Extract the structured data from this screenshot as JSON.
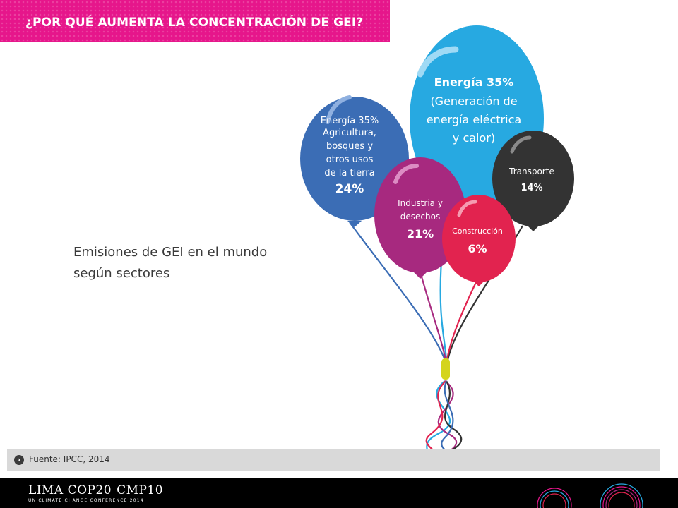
{
  "header": {
    "title": "¿POR QUÉ AUMENTA LA CONCENTRACIÓN DE GEI?"
  },
  "main": {
    "subtitle_line1": "Emisiones de GEI en el mundo",
    "subtitle_line2": "según sectores"
  },
  "balloons": [
    {
      "lines": [
        "Energía 35%",
        "(Generación de",
        "energía eléctrica",
        "y calor)"
      ],
      "color": "#27a9e1"
    },
    {
      "lines": [
        "Agricultura,",
        "bosques y",
        "otros usos",
        "de la tierra",
        "24%"
      ],
      "color": "#3b6db5"
    },
    {
      "lines": [
        "Transporte",
        "14%"
      ],
      "color": "#333333"
    },
    {
      "lines": [
        "Industria y",
        "desechos",
        "21%"
      ],
      "color": "#a7297f"
    },
    {
      "lines": [
        "Construcción",
        "6%"
      ],
      "color": "#e2234f"
    }
  ],
  "footer": {
    "source": "Fuente: IPCC, 2014"
  },
  "branding": {
    "logo_part1": "LIMA COP20",
    "logo_part2": "CMP10",
    "logo_sub": "UN CLIMATE CHANGE CONFERENCE 2014"
  },
  "colors": {
    "accent_magenta": "#e6168b",
    "footer_gray": "#d9d9d9"
  }
}
